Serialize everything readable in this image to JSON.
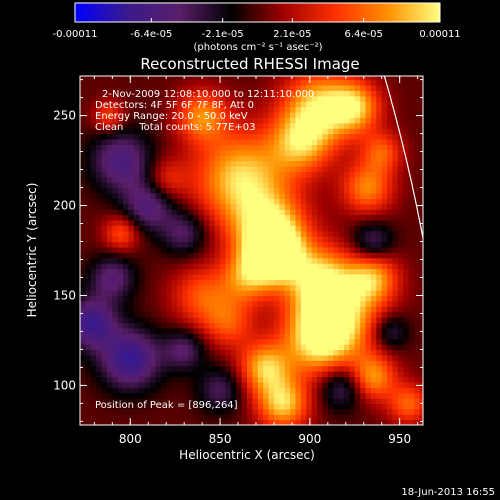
{
  "chart_data": {
    "type": "heatmap",
    "title": "Reconstructed RHESSI Image",
    "xlabel": "Heliocentric X (arcsec)",
    "ylabel": "Heliocentric Y (arcsec)",
    "xlim": [
      772,
      963
    ],
    "ylim": [
      78,
      272
    ],
    "x_ticks": [
      800,
      850,
      900,
      950
    ],
    "y_ticks": [
      100,
      150,
      200,
      250
    ],
    "colorbar": {
      "ticks": [
        "-0.00011",
        "-6.4e-05",
        "-2.1e-05",
        "2.1e-05",
        "6.4e-05",
        "0.00011"
      ],
      "label": "(photons cm⁻² s⁻¹ asec⁻²)",
      "range": [
        -0.00011,
        0.00011
      ],
      "colors": [
        "#0000ff",
        "#3a1a8a",
        "#5a1e6a",
        "#000000",
        "#a00000",
        "#ff3000",
        "#ff9000",
        "#ffff80"
      ]
    },
    "info_lines": [
      "2-Nov-2009 12:08:10.000 to 12:11:10.000",
      "Detectors: 4F 5F 6F 7F 8F, Att 0",
      "Energy Range: 20.0 - 50.0 keV",
      "Clean     Total counts: 5.77E+03"
    ],
    "peak_label": "Position of Peak = [896,264]",
    "peak": {
      "x": 896,
      "y": 264
    },
    "limb": {
      "type": "arc",
      "cx": 0,
      "cy": 0,
      "r": 980
    },
    "blobs": [
      {
        "x": 862,
        "y": 215,
        "r": 18,
        "v": 0.9
      },
      {
        "x": 878,
        "y": 185,
        "r": 14,
        "v": 1.0
      },
      {
        "x": 880,
        "y": 172,
        "r": 10,
        "v": 1.0
      },
      {
        "x": 905,
        "y": 255,
        "r": 14,
        "v": 0.85
      },
      {
        "x": 895,
        "y": 235,
        "r": 12,
        "v": 0.7
      },
      {
        "x": 925,
        "y": 255,
        "r": 10,
        "v": 0.75
      },
      {
        "x": 932,
        "y": 210,
        "r": 10,
        "v": 0.65
      },
      {
        "x": 905,
        "y": 160,
        "r": 13,
        "v": 0.75
      },
      {
        "x": 915,
        "y": 140,
        "r": 16,
        "v": 0.85
      },
      {
        "x": 935,
        "y": 160,
        "r": 10,
        "v": 0.7
      },
      {
        "x": 905,
        "y": 125,
        "r": 14,
        "v": 0.8
      },
      {
        "x": 875,
        "y": 110,
        "r": 10,
        "v": 0.8
      },
      {
        "x": 885,
        "y": 90,
        "r": 10,
        "v": 0.85
      },
      {
        "x": 935,
        "y": 105,
        "r": 9,
        "v": 0.7
      },
      {
        "x": 955,
        "y": 90,
        "r": 8,
        "v": 0.55
      },
      {
        "x": 840,
        "y": 150,
        "r": 12,
        "v": 0.5
      },
      {
        "x": 855,
        "y": 135,
        "r": 10,
        "v": 0.45
      },
      {
        "x": 840,
        "y": 250,
        "r": 10,
        "v": 0.65
      },
      {
        "x": 795,
        "y": 185,
        "r": 7,
        "v": 0.5
      },
      {
        "x": 788,
        "y": 250,
        "r": 6,
        "v": 0.45
      },
      {
        "x": 820,
        "y": 215,
        "r": 8,
        "v": 0.35
      },
      {
        "x": 940,
        "y": 230,
        "r": 8,
        "v": 0.5
      },
      {
        "x": 865,
        "y": 160,
        "r": 10,
        "v": 0.6
      },
      {
        "x": 800,
        "y": 115,
        "r": 12,
        "v": -0.75
      },
      {
        "x": 778,
        "y": 135,
        "r": 10,
        "v": -0.7
      },
      {
        "x": 795,
        "y": 225,
        "r": 12,
        "v": -0.6
      },
      {
        "x": 810,
        "y": 200,
        "r": 10,
        "v": -0.55
      },
      {
        "x": 790,
        "y": 160,
        "r": 9,
        "v": -0.5
      },
      {
        "x": 830,
        "y": 185,
        "r": 9,
        "v": -0.45
      },
      {
        "x": 935,
        "y": 180,
        "r": 8,
        "v": -0.45
      },
      {
        "x": 918,
        "y": 100,
        "r": 9,
        "v": -0.5
      },
      {
        "x": 850,
        "y": 98,
        "r": 9,
        "v": -0.4
      },
      {
        "x": 830,
        "y": 120,
        "r": 8,
        "v": -0.45
      },
      {
        "x": 945,
        "y": 130,
        "r": 7,
        "v": -0.4
      }
    ]
  },
  "timestamp": "18-Jun-2013 16:55"
}
